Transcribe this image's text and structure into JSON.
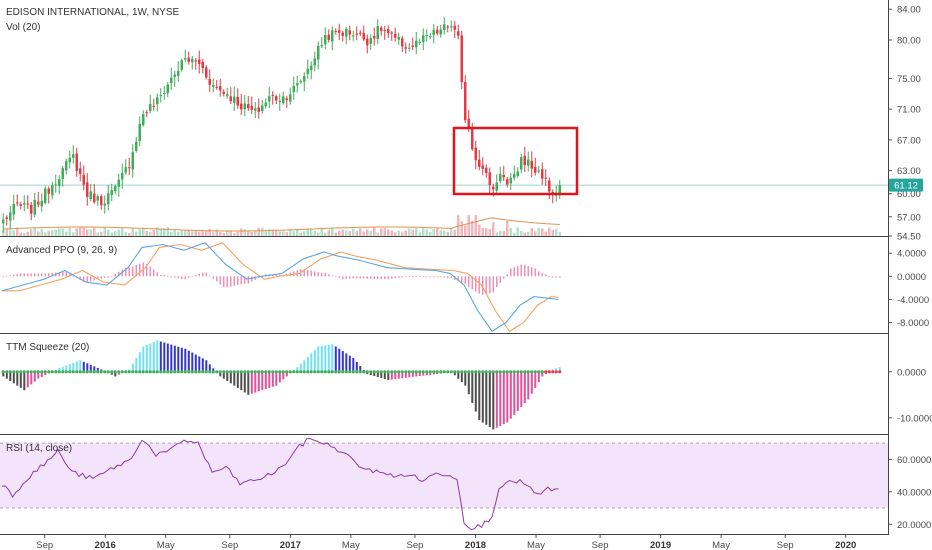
{
  "colors": {
    "up": "#26a69a",
    "up_green": "#3fae5a",
    "down": "#e53946",
    "ma_blue": "#5aa6e6",
    "ma_orange": "#f4a261",
    "ppo_hist": "#f48fb1",
    "squeeze_cyan": "#6fe3f5",
    "squeeze_blue": "#3636c8",
    "squeeze_gray": "#4d4d4d",
    "squeeze_magenta": "#e0509b",
    "rsi_line": "#8e3aa8",
    "rsi_band": "#f3e3fb",
    "last_price_bg": "#26a69a",
    "highlight_box": "#e0141e"
  },
  "main": {
    "title": "EDISON INTERNATIONAL, 1W, NYSE",
    "volume_label": "Vol (20)",
    "last_price": "61.12",
    "y_ticks": [
      "84.00",
      "80.00",
      "75.00",
      "71.00",
      "67.00",
      "63.00",
      "60.00",
      "57.00",
      "54.50"
    ],
    "y_tick_values": [
      84,
      80,
      75,
      71,
      67,
      63,
      60,
      57,
      54.5
    ],
    "y_range": [
      54.5,
      85.2
    ]
  },
  "ppo": {
    "label": "Advanced PPO (9, 26, 9)",
    "y_ticks": [
      "4.0000",
      "0.0000",
      "-4.0000",
      "-8.0000"
    ],
    "y_tick_values": [
      4,
      0,
      -4,
      -8
    ],
    "y_range": [
      -9.8,
      6.8
    ]
  },
  "squeeze": {
    "label": "TTM Squeeze (20)",
    "y_ticks": [
      "0.0000",
      "-10.0000"
    ],
    "y_tick_values": [
      0,
      -10
    ],
    "y_range": [
      -13.5,
      8.2
    ]
  },
  "rsi": {
    "label": "RSI (14, close)",
    "y_ticks": [
      "60.0000",
      "40.0000",
      "20.0000"
    ],
    "y_tick_values": [
      60,
      40,
      20
    ],
    "y_range": [
      14,
      75
    ],
    "band": [
      30,
      70
    ]
  },
  "x_axis": {
    "labels": [
      "Sep",
      "2016",
      "May",
      "Sep",
      "2017",
      "May",
      "Sep",
      "2018",
      "May",
      "Sep",
      "2019",
      "May",
      "Sep",
      "2020"
    ],
    "bold": [
      false,
      true,
      false,
      false,
      true,
      false,
      false,
      true,
      false,
      false,
      true,
      false,
      false,
      true
    ]
  },
  "chart_data": {
    "type": "candlestick",
    "interval": "weekly",
    "weeks": 160,
    "close_keypoints": [
      [
        0,
        56.5
      ],
      [
        4,
        58.5
      ],
      [
        8,
        58.0
      ],
      [
        12,
        60.0
      ],
      [
        16,
        62.5
      ],
      [
        20,
        64.8
      ],
      [
        24,
        60.0
      ],
      [
        28,
        59.0
      ],
      [
        32,
        60.5
      ],
      [
        36,
        64.0
      ],
      [
        40,
        70.5
      ],
      [
        44,
        72.0
      ],
      [
        48,
        75.0
      ],
      [
        52,
        77.5
      ],
      [
        56,
        77.0
      ],
      [
        60,
        74.0
      ],
      [
        64,
        73.0
      ],
      [
        68,
        71.5
      ],
      [
        72,
        70.5
      ],
      [
        76,
        72.5
      ],
      [
        80,
        72.5
      ],
      [
        84,
        74.0
      ],
      [
        88,
        77.0
      ],
      [
        92,
        80.5
      ],
      [
        96,
        81.0
      ],
      [
        100,
        81.0
      ],
      [
        104,
        80.0
      ],
      [
        108,
        81.5
      ],
      [
        112,
        80.0
      ],
      [
        116,
        79.0
      ],
      [
        120,
        80.0
      ],
      [
        124,
        81.0
      ],
      [
        128,
        82.0
      ],
      [
        130,
        80.0
      ],
      [
        131,
        74.0
      ],
      [
        132,
        70.0
      ],
      [
        133,
        69.0
      ],
      [
        134,
        66.0
      ],
      [
        137,
        63.0
      ],
      [
        139,
        61.5
      ],
      [
        140,
        60.5
      ],
      [
        142,
        63.0
      ],
      [
        144,
        61.0
      ],
      [
        146,
        62.0
      ],
      [
        148,
        64.5
      ],
      [
        150,
        64.0
      ],
      [
        152,
        63.0
      ],
      [
        154,
        62.5
      ],
      [
        156,
        60.5
      ],
      [
        158,
        60.0
      ],
      [
        159,
        61.12
      ]
    ],
    "last_close": 61.12,
    "ppo_keypoints": [
      [
        0,
        -2.5
      ],
      [
        6,
        -1.5
      ],
      [
        12,
        -0.5
      ],
      [
        18,
        1.0
      ],
      [
        24,
        -1.0
      ],
      [
        30,
        -1.5
      ],
      [
        36,
        1.5
      ],
      [
        40,
        5.0
      ],
      [
        46,
        5.5
      ],
      [
        52,
        4.5
      ],
      [
        58,
        5.8
      ],
      [
        64,
        2.0
      ],
      [
        70,
        -0.5
      ],
      [
        74,
        0.0
      ],
      [
        80,
        0.5
      ],
      [
        86,
        3.0
      ],
      [
        92,
        4.2
      ],
      [
        96,
        3.5
      ],
      [
        102,
        2.8
      ],
      [
        110,
        1.5
      ],
      [
        118,
        1.2
      ],
      [
        124,
        1.0
      ],
      [
        128,
        0.5
      ],
      [
        132,
        -1.5
      ],
      [
        136,
        -6.0
      ],
      [
        140,
        -9.5
      ],
      [
        144,
        -8.0
      ],
      [
        148,
        -5.0
      ],
      [
        152,
        -3.5
      ],
      [
        159,
        -4.0
      ]
    ],
    "squeeze_keypoints": [
      [
        0,
        -1.0
      ],
      [
        6,
        -4.0
      ],
      [
        10,
        -1.5
      ],
      [
        16,
        0.8
      ],
      [
        22,
        2.5
      ],
      [
        28,
        0.5
      ],
      [
        32,
        -1.0
      ],
      [
        36,
        0.5
      ],
      [
        40,
        5.5
      ],
      [
        44,
        6.8
      ],
      [
        52,
        5.0
      ],
      [
        58,
        2.5
      ],
      [
        62,
        -1.0
      ],
      [
        70,
        -5.0
      ],
      [
        78,
        -3.0
      ],
      [
        84,
        1.0
      ],
      [
        90,
        5.5
      ],
      [
        94,
        6.0
      ],
      [
        100,
        3.0
      ],
      [
        104,
        -0.5
      ],
      [
        110,
        -1.8
      ],
      [
        118,
        -1.0
      ],
      [
        124,
        -0.5
      ],
      [
        128,
        0.0
      ],
      [
        132,
        -3.0
      ],
      [
        136,
        -10.5
      ],
      [
        140,
        -12.5
      ],
      [
        144,
        -11.0
      ],
      [
        150,
        -6.0
      ],
      [
        154,
        -1.0
      ],
      [
        157,
        0.5
      ],
      [
        159,
        1.0
      ]
    ],
    "rsi_keypoints": [
      [
        0,
        45
      ],
      [
        3,
        38
      ],
      [
        8,
        50
      ],
      [
        12,
        57
      ],
      [
        16,
        65
      ],
      [
        20,
        52
      ],
      [
        26,
        48
      ],
      [
        32,
        55
      ],
      [
        37,
        60
      ],
      [
        40,
        73
      ],
      [
        44,
        63
      ],
      [
        48,
        65
      ],
      [
        52,
        72
      ],
      [
        56,
        70
      ],
      [
        60,
        52
      ],
      [
        64,
        55
      ],
      [
        68,
        45
      ],
      [
        72,
        47
      ],
      [
        76,
        50
      ],
      [
        80,
        55
      ],
      [
        84,
        66
      ],
      [
        88,
        73
      ],
      [
        92,
        70
      ],
      [
        96,
        66
      ],
      [
        100,
        60
      ],
      [
        104,
        53
      ],
      [
        108,
        53
      ],
      [
        112,
        49
      ],
      [
        116,
        51
      ],
      [
        120,
        47
      ],
      [
        124,
        51
      ],
      [
        128,
        51
      ],
      [
        130,
        48
      ],
      [
        132,
        22
      ],
      [
        134,
        18
      ],
      [
        137,
        19
      ],
      [
        140,
        25
      ],
      [
        142,
        43
      ],
      [
        144,
        45
      ],
      [
        148,
        47
      ],
      [
        150,
        43
      ],
      [
        152,
        40
      ],
      [
        154,
        38
      ],
      [
        156,
        42
      ],
      [
        159,
        41
      ]
    ],
    "rsi_band": [
      30,
      70
    ]
  }
}
